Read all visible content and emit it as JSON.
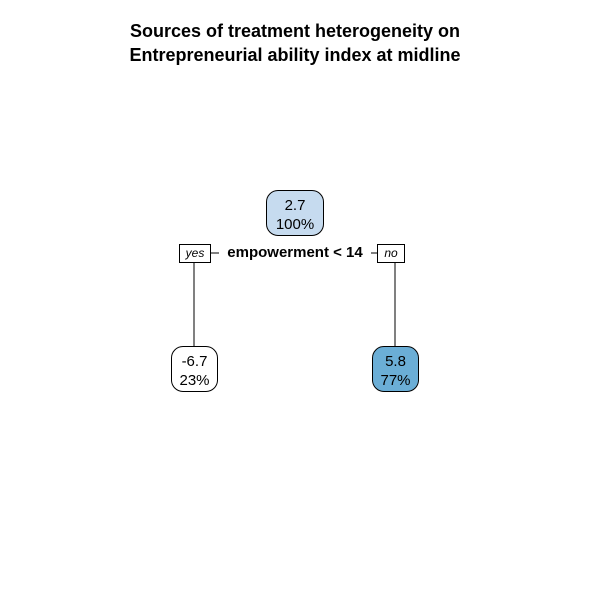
{
  "title": {
    "line1": "Sources of treatment heterogeneity on",
    "line2": "Entrepreneurial ability index at midline"
  },
  "tree": {
    "split": {
      "label": "empowerment < 14",
      "yes_label": "yes",
      "no_label": "no"
    },
    "nodes": {
      "root": {
        "value": "2.7",
        "percent": "100%",
        "fill": "#c6dbef"
      },
      "left": {
        "value": "-6.7",
        "percent": "23%",
        "fill": "#ffffff"
      },
      "right": {
        "value": "5.8",
        "percent": "77%",
        "fill": "#6baed6"
      }
    }
  }
}
